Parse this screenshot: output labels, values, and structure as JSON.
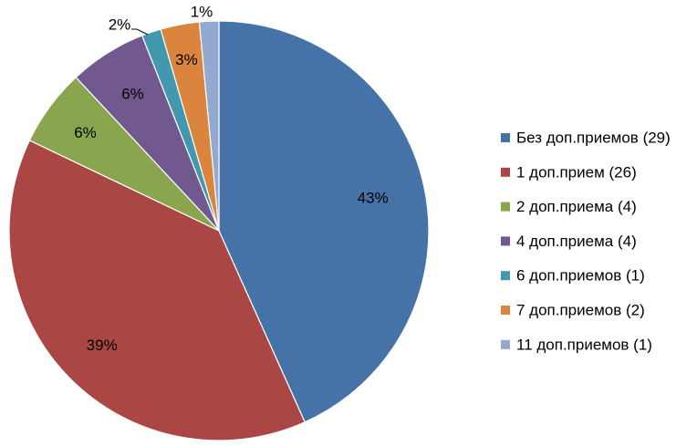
{
  "chart_data": {
    "type": "pie",
    "title": "",
    "legend_position": "right",
    "start_angle_deg": 0,
    "direction": "clockwise",
    "slices": [
      {
        "name": "Без доп.приемов (29)",
        "value": 29,
        "label": "43%",
        "color": "#4572A7"
      },
      {
        "name": "1 доп.прием (26)",
        "value": 26,
        "label": "39%",
        "color": "#AA4643"
      },
      {
        "name": "2 доп.приема (4)",
        "value": 4,
        "label": "6%",
        "color": "#89A54E"
      },
      {
        "name": "4 доп.приема (4)",
        "value": 4,
        "label": "6%",
        "color": "#71588F"
      },
      {
        "name": "6 доп.приемов (1)",
        "value": 1,
        "label": "2%",
        "color": "#4198AF"
      },
      {
        "name": "7 доп.приемов (2)",
        "value": 2,
        "label": "3%",
        "color": "#DB843D"
      },
      {
        "name": "11 доп.приемов (1)",
        "value": 1,
        "label": "1%",
        "color": "#93A9CF"
      }
    ]
  }
}
